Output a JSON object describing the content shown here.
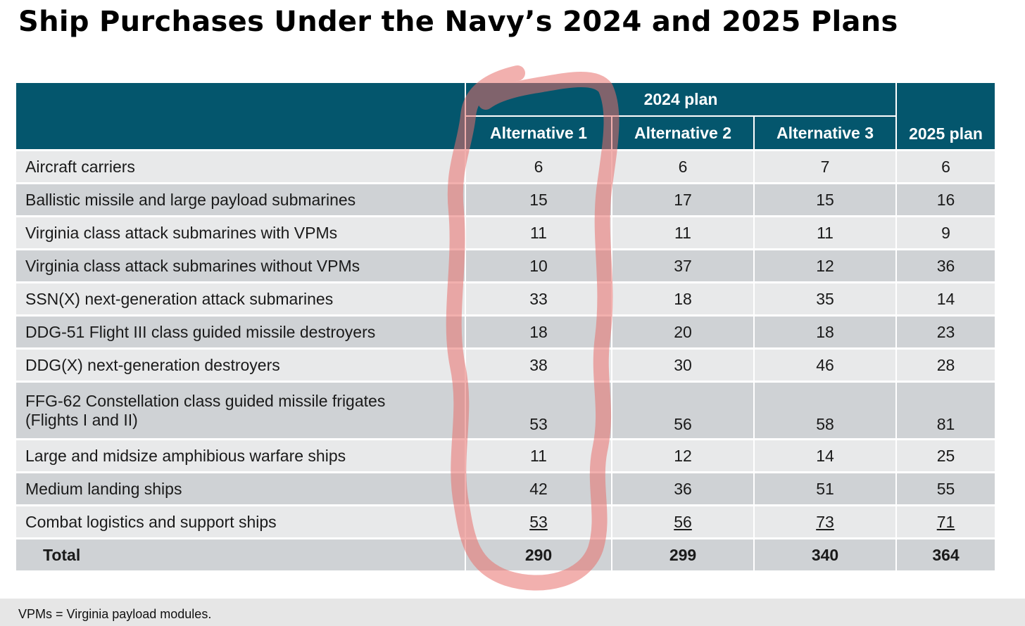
{
  "title": "Ship Purchases Under the Navy’s 2024 and 2025 Plans",
  "table": {
    "group_header": "2024 plan",
    "columns": [
      "Alternative 1",
      "Alternative 2",
      "Alternative 3",
      "2025 plan"
    ],
    "rows": [
      {
        "label": "Aircraft carriers",
        "values": [
          "6",
          "6",
          "7",
          "6"
        ]
      },
      {
        "label": "Ballistic missile and large payload submarines",
        "values": [
          "15",
          "17",
          "15",
          "16"
        ]
      },
      {
        "label": "Virginia class attack submarines with VPMs",
        "values": [
          "11",
          "11",
          "11",
          "9"
        ]
      },
      {
        "label": "Virginia class attack submarines without VPMs",
        "values": [
          "10",
          "37",
          "12",
          "36"
        ]
      },
      {
        "label": "SSN(X) next-generation attack submarines",
        "values": [
          "33",
          "18",
          "35",
          "14"
        ]
      },
      {
        "label": "DDG-51 Flight III class guided missile destroyers",
        "values": [
          "18",
          "20",
          "18",
          "23"
        ]
      },
      {
        "label": "DDG(X) next-generation destroyers",
        "values": [
          "38",
          "30",
          "46",
          "28"
        ]
      },
      {
        "label_line1": "FFG-62 Constellation class guided missile frigates",
        "label_line2": "(Flights I and II)",
        "values": [
          "53",
          "56",
          "58",
          "81"
        ]
      },
      {
        "label": "Large and midsize amphibious warfare ships",
        "values": [
          "11",
          "12",
          "14",
          "25"
        ]
      },
      {
        "label": "Medium landing ships",
        "values": [
          "42",
          "36",
          "51",
          "55"
        ]
      },
      {
        "label": "Combat logistics and support ships",
        "values": [
          "53",
          "56",
          "73",
          "71"
        ]
      }
    ],
    "total": {
      "label": "Total",
      "values": [
        "290",
        "299",
        "340",
        "364"
      ]
    }
  },
  "footnote": "VPMs = Virginia payload modules.",
  "colors": {
    "header_bg": "#04566d",
    "row_light": "#e8e9ea",
    "row_dark": "#cfd2d5",
    "annotation": "#e8706c"
  }
}
